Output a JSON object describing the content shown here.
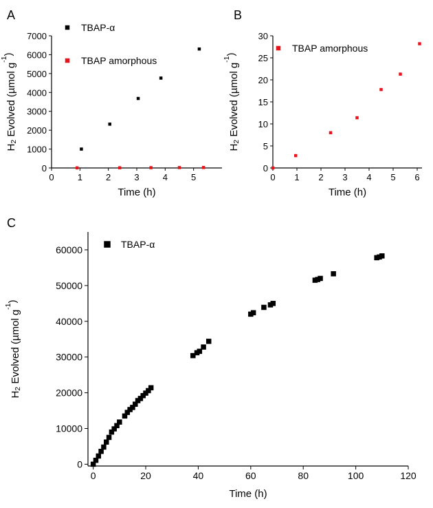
{
  "chart_data": [
    {
      "panel_label": "A",
      "type": "scatter",
      "xlabel": "Time (h)",
      "ylabel_main": "H",
      "ylabel_sub": "2",
      "ylabel_rest": " Evolved (µmol g",
      "ylabel_sup": "-1",
      "ylabel_end": ")",
      "xlim": [
        0,
        6
      ],
      "ylim": [
        0,
        7000
      ],
      "xticks": [
        0,
        1,
        2,
        3,
        4,
        5
      ],
      "yticks": [
        0,
        1000,
        2000,
        3000,
        4000,
        5000,
        6000,
        7000
      ],
      "grid": false,
      "legend_position": "top-left",
      "series": [
        {
          "name": "TBAP-α",
          "color": "#000000",
          "marker": "square",
          "x": [
            1.05,
            2.05,
            3.05,
            3.85,
            5.2
          ],
          "y": [
            1000,
            2320,
            3680,
            4760,
            6300
          ]
        },
        {
          "name": "TBAP amorphous",
          "color": "#e8141c",
          "marker": "square",
          "x": [
            0.9,
            2.4,
            3.5,
            4.5,
            5.35
          ],
          "y": [
            5,
            10,
            15,
            20,
            25
          ]
        }
      ]
    },
    {
      "panel_label": "B",
      "type": "scatter",
      "xlabel": "Time (h)",
      "ylabel_main": "H",
      "ylabel_sub": "2",
      "ylabel_rest": " Evolved (µmol g",
      "ylabel_sup": "-1",
      "ylabel_end": ")",
      "xlim": [
        0,
        6.2
      ],
      "ylim": [
        0,
        30
      ],
      "xticks": [
        0,
        1,
        2,
        3,
        4,
        5,
        6
      ],
      "yticks": [
        0,
        5,
        10,
        15,
        20,
        25,
        30
      ],
      "grid": false,
      "legend_position": "top-left",
      "series": [
        {
          "name": "TBAP amorphous",
          "color": "#e8141c",
          "marker": "square",
          "x": [
            0,
            0.95,
            2.4,
            3.5,
            4.5,
            5.3,
            6.1
          ],
          "y": [
            0,
            2.8,
            8.0,
            11.4,
            17.8,
            21.3,
            28.2
          ]
        }
      ]
    },
    {
      "panel_label": "C",
      "type": "scatter",
      "xlabel": "Time (h)",
      "ylabel_main": "H",
      "ylabel_sub": "2",
      "ylabel_rest": " Evolved (µmol g",
      "ylabel_sup": "-1",
      "ylabel_end": ")",
      "xlim": [
        -2,
        120
      ],
      "ylim": [
        -500,
        65000
      ],
      "xticks": [
        0,
        20,
        40,
        60,
        80,
        100,
        120
      ],
      "yticks": [
        0,
        10000,
        20000,
        30000,
        40000,
        50000,
        60000
      ],
      "grid": false,
      "legend_position": "top-left",
      "series": [
        {
          "name": "TBAP-α",
          "color": "#000000",
          "marker": "square",
          "x": [
            0,
            1,
            2,
            3,
            4,
            5,
            6,
            7,
            8,
            9,
            10,
            12,
            13,
            14,
            15,
            16,
            17,
            18,
            19,
            20,
            21,
            22,
            38,
            39.5,
            40.5,
            42,
            44,
            60,
            61,
            65,
            67.5,
            68.5,
            84.5,
            85.5,
            86.5,
            91.5,
            108,
            109,
            110
          ],
          "y": [
            0,
            1100,
            2300,
            3600,
            4800,
            6200,
            7500,
            9000,
            9900,
            10800,
            11800,
            13500,
            14500,
            15300,
            15900,
            16800,
            17800,
            18400,
            19200,
            19900,
            20600,
            21400,
            30400,
            31200,
            31600,
            32800,
            34400,
            42000,
            42400,
            43900,
            44600,
            45000,
            51500,
            51700,
            52000,
            53300,
            57800,
            58000,
            58300
          ]
        }
      ]
    }
  ]
}
